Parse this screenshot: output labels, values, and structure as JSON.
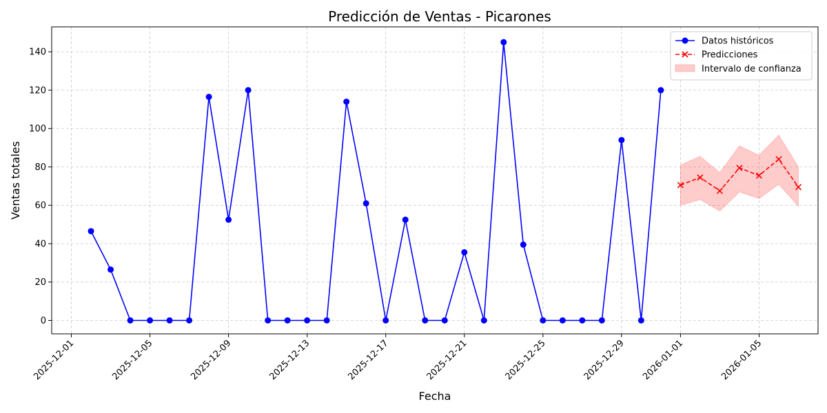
{
  "chart_data": {
    "type": "line",
    "title": "Predicción de Ventas - Picarones",
    "xlabel": "Fecha",
    "ylabel": "Ventas totales",
    "grid": true,
    "legend_position": "top-right",
    "x_tick_labels": [
      "2025-12-01",
      "2025-12-05",
      "2025-12-09",
      "2025-12-13",
      "2025-12-17",
      "2025-12-21",
      "2025-12-25",
      "2025-12-29",
      "2026-01-01",
      "2026-01-05"
    ],
    "y_ticks": [
      0,
      20,
      40,
      60,
      80,
      100,
      120,
      140
    ],
    "xlim": [
      "2025-11-30",
      "2026-01-08"
    ],
    "ylim": [
      -7,
      153
    ],
    "series": [
      {
        "name": "Datos históricos",
        "color": "#0000ff",
        "marker": "circle",
        "line_style": "solid",
        "x": [
          "2025-12-02",
          "2025-12-03",
          "2025-12-04",
          "2025-12-05",
          "2025-12-06",
          "2025-12-07",
          "2025-12-08",
          "2025-12-09",
          "2025-12-10",
          "2025-12-11",
          "2025-12-12",
          "2025-12-13",
          "2025-12-14",
          "2025-12-15",
          "2025-12-16",
          "2025-12-17",
          "2025-12-18",
          "2025-12-19",
          "2025-12-20",
          "2025-12-21",
          "2025-12-22",
          "2025-12-23",
          "2025-12-24",
          "2025-12-25",
          "2025-12-26",
          "2025-12-27",
          "2025-12-28",
          "2025-12-29",
          "2025-12-30",
          "2025-12-31"
        ],
        "values": [
          46.5,
          26.5,
          0,
          0,
          0,
          0,
          116.5,
          52.5,
          120,
          0,
          0,
          0,
          0,
          114,
          61,
          0,
          52.5,
          0,
          0,
          35.5,
          0,
          145,
          39.5,
          0,
          0,
          0,
          0,
          94,
          0,
          120
        ]
      },
      {
        "name": "Predicciones",
        "color": "#ff0000",
        "marker": "x",
        "line_style": "dashed",
        "x": [
          "2026-01-01",
          "2026-01-02",
          "2026-01-03",
          "2026-01-04",
          "2026-01-05",
          "2026-01-06",
          "2026-01-07"
        ],
        "values": [
          70.5,
          74.5,
          67.5,
          79.5,
          75.5,
          84,
          69.5
        ]
      }
    ],
    "confidence_interval": {
      "name": "Intervalo de confianza",
      "color": "#ff0000",
      "x": [
        "2026-01-01",
        "2026-01-02",
        "2026-01-03",
        "2026-01-04",
        "2026-01-05",
        "2026-01-06",
        "2026-01-07"
      ],
      "lower": [
        60,
        63,
        57,
        67,
        63.5,
        71,
        59.5
      ],
      "upper": [
        81,
        85.5,
        77,
        91,
        86,
        96.5,
        80
      ]
    }
  }
}
